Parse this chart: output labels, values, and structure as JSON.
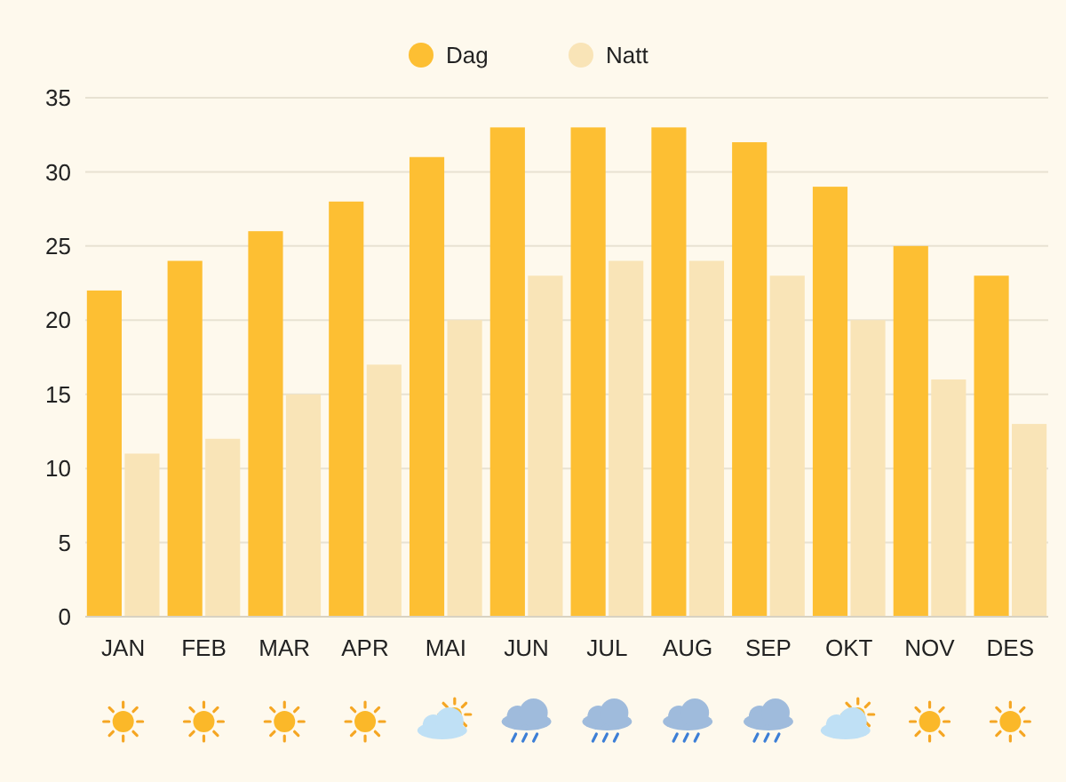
{
  "chart_data": {
    "type": "bar",
    "categories": [
      "JAN",
      "FEB",
      "MAR",
      "APR",
      "MAI",
      "JUN",
      "JUL",
      "AUG",
      "SEP",
      "OKT",
      "NOV",
      "DES"
    ],
    "series": [
      {
        "name": "Dag",
        "color": "#fdbf33",
        "values": [
          22,
          24,
          26,
          28,
          31,
          33,
          33,
          33,
          32,
          29,
          25,
          23
        ]
      },
      {
        "name": "Natt",
        "color": "#f9e4b7",
        "values": [
          11,
          12,
          15,
          17,
          20,
          23,
          24,
          24,
          23,
          20,
          16,
          13
        ]
      }
    ],
    "ylim": [
      0,
      35
    ],
    "yticks": [
      0,
      5,
      10,
      15,
      20,
      25,
      30,
      35
    ],
    "grid": "y",
    "legend": "top"
  }
}
